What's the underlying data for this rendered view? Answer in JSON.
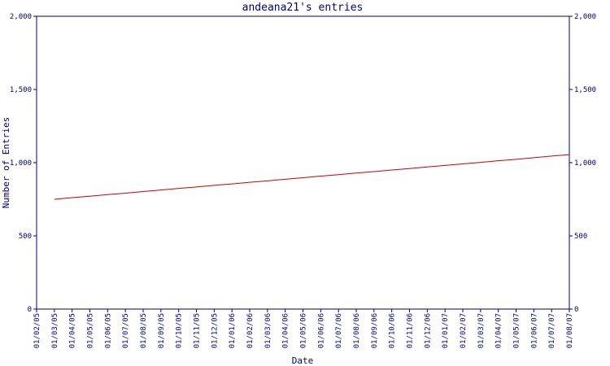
{
  "chart_data": {
    "type": "line",
    "title": "andeana21's entries",
    "x_label": "Date",
    "y_label": "Number of Entries",
    "categories": [
      "01/02/05",
      "01/03/05",
      "01/04/05",
      "01/05/05",
      "01/06/05",
      "01/07/05",
      "01/08/05",
      "01/09/05",
      "01/10/05",
      "01/11/05",
      "01/12/05",
      "01/01/06",
      "01/02/06",
      "01/03/06",
      "01/04/06",
      "01/05/06",
      "01/06/06",
      "01/07/06",
      "01/08/06",
      "01/09/06",
      "01/10/06",
      "01/11/06",
      "01/12/06",
      "01/01/07",
      "01/02/07",
      "01/03/07",
      "01/04/07",
      "01/05/07",
      "01/06/07",
      "01/07/07",
      "01/08/07"
    ],
    "series": [
      {
        "name": "entries",
        "color": "#cc0000",
        "values": [
          null,
          750,
          761,
          771,
          782,
          792,
          803,
          813,
          824,
          834,
          845,
          855,
          866,
          876,
          887,
          897,
          908,
          918,
          929,
          939,
          950,
          960,
          971,
          981,
          992,
          1002,
          1013,
          1023,
          1034,
          1045,
          1055
        ]
      }
    ],
    "ylim": [
      0,
      2000
    ],
    "yticks": [
      0,
      500,
      {
        "value": 1000,
        "label": "1,000"
      },
      {
        "value": 1500,
        "label": "1,500"
      },
      {
        "value": 2000,
        "label": "2,000"
      }
    ],
    "y2lim": [
      0,
      2000
    ],
    "y2ticks": [
      0,
      500,
      {
        "value": 1000,
        "label": "1,000"
      },
      {
        "value": 1500,
        "label": "1,500"
      },
      {
        "value": 2000,
        "label": "2,000"
      }
    ]
  }
}
